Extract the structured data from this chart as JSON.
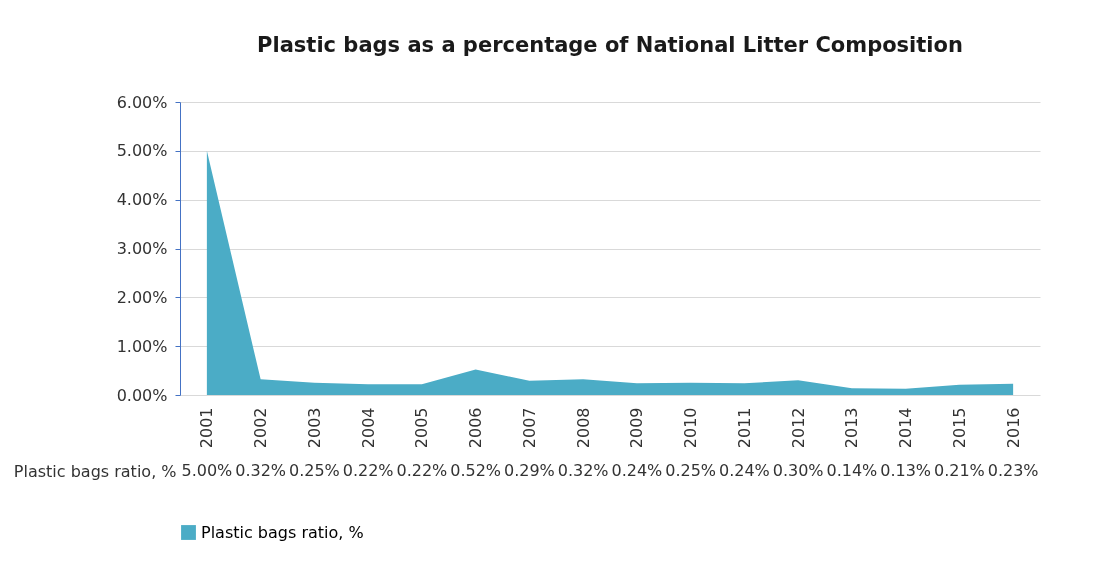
{
  "chart_data": {
    "type": "area",
    "title": "Plastic bags as a percentage of National Litter Composition",
    "categories": [
      "2001",
      "2002",
      "2003",
      "2004",
      "2005",
      "2006",
      "2007",
      "2008",
      "2009",
      "2010",
      "2011",
      "2012",
      "2013",
      "2014",
      "2015",
      "2016"
    ],
    "series": [
      {
        "name": "Plastic bags ratio, %",
        "color": "#4bacc6",
        "values": [
          5.0,
          0.32,
          0.25,
          0.22,
          0.22,
          0.52,
          0.29,
          0.32,
          0.24,
          0.25,
          0.24,
          0.3,
          0.14,
          0.13,
          0.21,
          0.23
        ],
        "value_labels": [
          "5.00%",
          "0.32%",
          "0.25%",
          "0.22%",
          "0.22%",
          "0.52%",
          "0.29%",
          "0.32%",
          "0.24%",
          "0.25%",
          "0.24%",
          "0.30%",
          "0.14%",
          "0.13%",
          "0.21%",
          "0.23%"
        ]
      }
    ],
    "ylim": [
      0,
      6
    ],
    "yticks": [
      {
        "value": 0,
        "label": "0.00%"
      },
      {
        "value": 1,
        "label": "1.00%"
      },
      {
        "value": 2,
        "label": "2.00%"
      },
      {
        "value": 3,
        "label": "3.00%"
      },
      {
        "value": 4,
        "label": "4.00%"
      },
      {
        "value": 5,
        "label": "5.00%"
      },
      {
        "value": 6,
        "label": "6.00%"
      }
    ],
    "grid": "y",
    "legend": "bottom"
  }
}
